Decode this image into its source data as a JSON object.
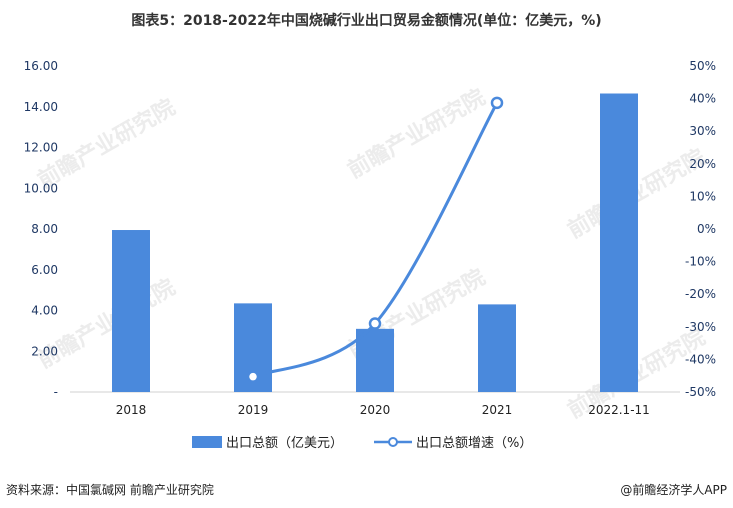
{
  "title": "图表5：2018-2022年中国烧碱行业出口贸易金额情况(单位：亿美元，%)",
  "source": "资料来源：中国氯碱网 前瞻产业研究院",
  "brand": "@前瞻经济学人APP",
  "watermark": "前瞻产业研究院",
  "colors": {
    "bar": "#4A89DC",
    "line": "#4A89DC",
    "axis_text": "#1F3864"
  },
  "chart_data": {
    "type": "bar",
    "categories": [
      "2018",
      "2019",
      "2020",
      "2021",
      "2022.1-11"
    ],
    "series": [
      {
        "name": "出口总额（亿美元）",
        "type": "bar",
        "axis": "left",
        "values": [
          7.95,
          4.35,
          3.1,
          4.3,
          14.65
        ]
      },
      {
        "name": "出口总额增速（%）",
        "type": "line",
        "axis": "right",
        "values": [
          null,
          -45.3,
          -29,
          38.7,
          null
        ]
      }
    ],
    "y_left": {
      "min": 0,
      "max": 16,
      "step": 2,
      "tick_labels": [
        "-",
        "2.00",
        "4.00",
        "6.00",
        "8.00",
        "10.00",
        "12.00",
        "14.00",
        "16.00"
      ]
    },
    "y_right": {
      "min": -50,
      "max": 50,
      "step": 10,
      "tick_labels": [
        "-50%",
        "-40%",
        "-30%",
        "-20%",
        "-10%",
        "0%",
        "10%",
        "20%",
        "30%",
        "40%",
        "50%"
      ]
    },
    "legend_position": "bottom",
    "grid": false
  }
}
